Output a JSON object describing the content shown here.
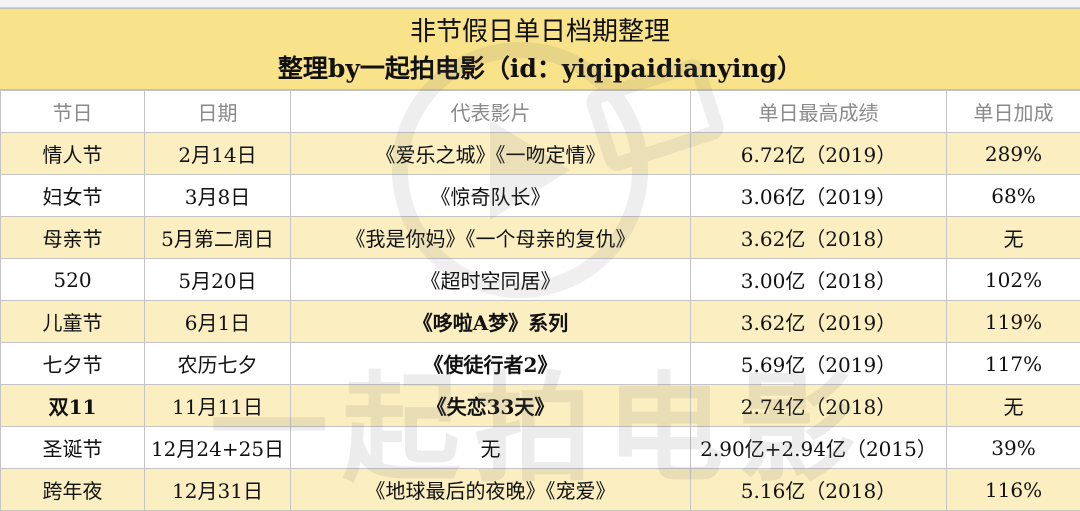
{
  "title": {
    "line1": "非节假日单日档期整理",
    "line2": "整理by一起拍电影（id：yiqipaidianying）"
  },
  "watermark": "一起拍电影",
  "table": {
    "headers": [
      "节日",
      "日期",
      "代表影片",
      "单日最高成绩",
      "单日加成"
    ],
    "rows": [
      {
        "festival": "情人节",
        "date": "2月14日",
        "films": "《爱乐之城》《一吻定情》",
        "best": "6.72亿（2019）",
        "boost": "289%"
      },
      {
        "festival": "妇女节",
        "date": "3月8日",
        "films": "《惊奇队长》",
        "best": "3.06亿（2019）",
        "boost": "68%"
      },
      {
        "festival": "母亲节",
        "date": "5月第二周日",
        "films": "《我是你妈》《一个母亲的复仇》",
        "best": "3.62亿（2018）",
        "boost": "无"
      },
      {
        "festival": "520",
        "date": "5月20日",
        "films": "《超时空同居》",
        "best": "3.00亿（2018）",
        "boost": "102%"
      },
      {
        "festival": "儿童节",
        "date": "6月1日",
        "films": "《哆啦A梦》系列",
        "best": "3.62亿（2019）",
        "boost": "119%"
      },
      {
        "festival": "七夕节",
        "date": "农历七夕",
        "films": "《使徒行者2》",
        "best": "5.69亿（2019）",
        "boost": "117%"
      },
      {
        "festival": "双11",
        "date": "11月11日",
        "films": "《失恋33天》",
        "best": "2.74亿（2018）",
        "boost": "无"
      },
      {
        "festival": "圣诞节",
        "date": "12月24+25日",
        "films": "无",
        "best": "2.90亿+2.94亿（2015）",
        "boost": "39%"
      },
      {
        "festival": "跨年夜",
        "date": "12月31日",
        "films": "《地球最后的夜晚》《宠爱》",
        "best": "5.16亿（2018）",
        "boost": "116%"
      }
    ]
  },
  "colors": {
    "title_bg": "#f8e28a",
    "odd_row_bg": "#fbeec0",
    "header_text": "#8a8a8a",
    "border": "#c4c4c4"
  }
}
